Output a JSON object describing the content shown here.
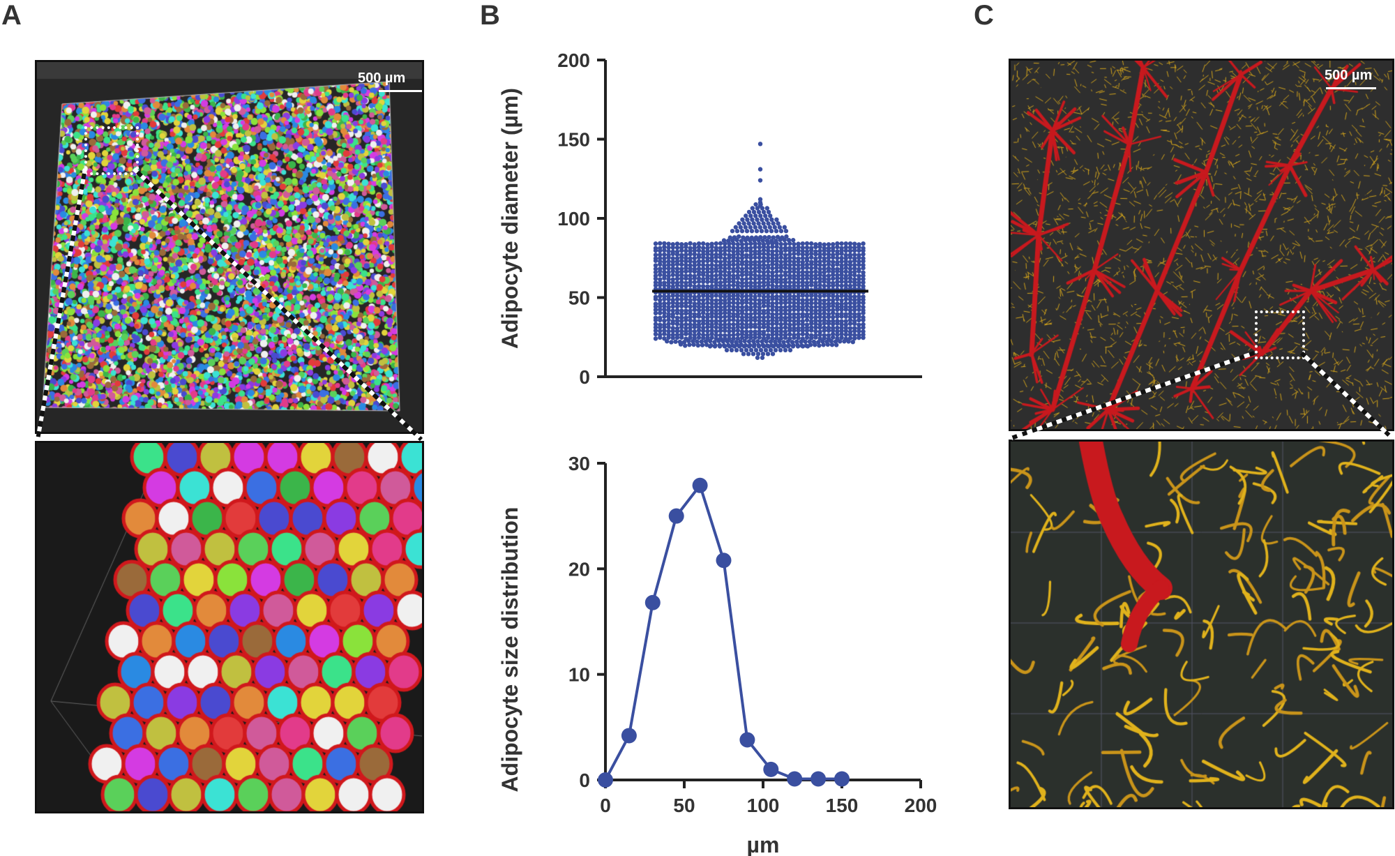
{
  "panels": {
    "a": "A",
    "b": "B",
    "c": "C"
  },
  "scale_bars": {
    "a": "500 µm",
    "c": "500 µm"
  },
  "colors": {
    "series": "#3a4fa0",
    "mean": "#111111",
    "vessel_red": "#c8191e",
    "vessel_yellow": "#d4a51c"
  },
  "chart_data": [
    {
      "type": "scatter",
      "subtype": "dot-plot",
      "ylabel": "Adipocyte diameter (µm)",
      "ylim": [
        0,
        200
      ],
      "yticks": [
        "0",
        "50",
        "100",
        "150",
        "200"
      ],
      "mean": 54,
      "range": [
        11,
        147
      ],
      "outliers": [
        147,
        131,
        124,
        112,
        110,
        108
      ]
    },
    {
      "type": "line",
      "ylabel": "Adipocyte size distribution",
      "xlabel": "µm",
      "xlim": [
        0,
        200
      ],
      "ylim": [
        0,
        30
      ],
      "xticks": [
        "0",
        "50",
        "100",
        "150",
        "200"
      ],
      "yticks": [
        "0",
        "10",
        "20",
        "30"
      ],
      "x": [
        0,
        15,
        30,
        45,
        60,
        75,
        90,
        105,
        120,
        135,
        150
      ],
      "y": [
        0,
        4.2,
        16.8,
        25,
        27.9,
        20.8,
        3.8,
        1,
        0.1,
        0.1,
        0.1
      ]
    }
  ]
}
